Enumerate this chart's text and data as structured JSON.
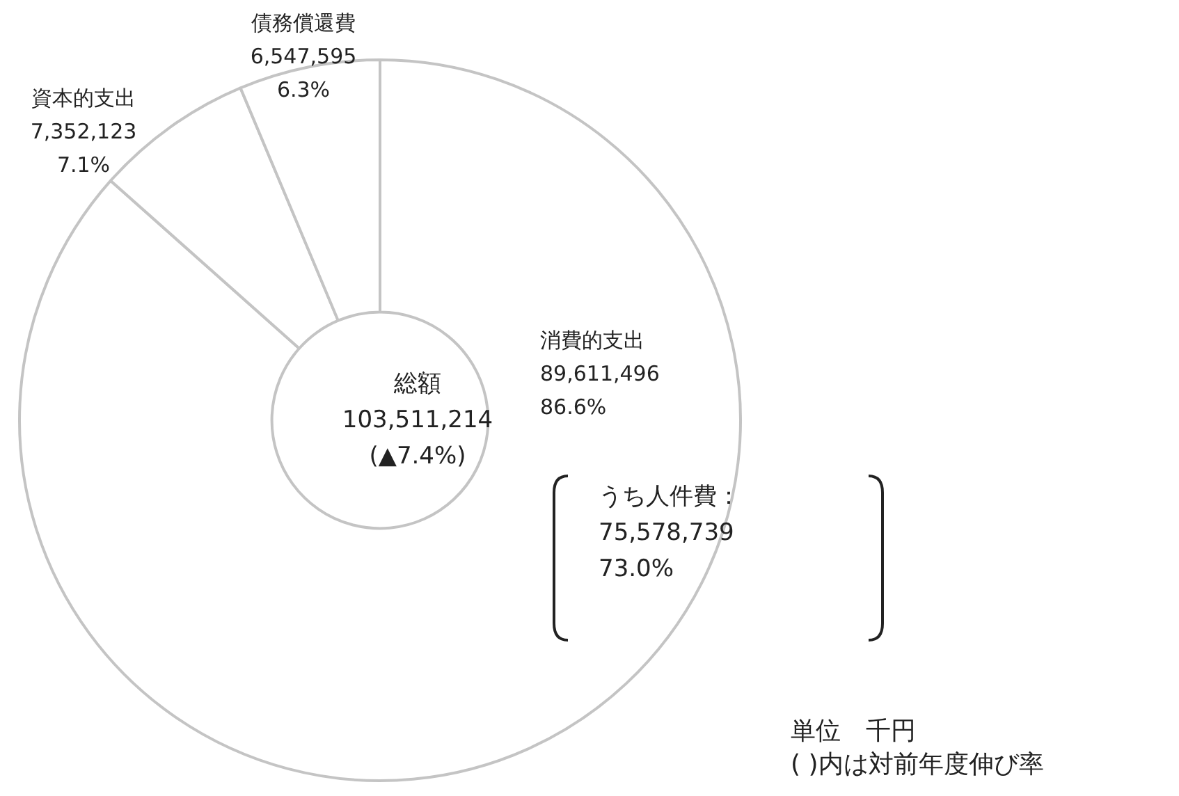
{
  "chart_data": {
    "type": "donut",
    "categories": [
      "消費的支出",
      "資本的支出",
      "債務償還費"
    ],
    "values": [
      89611496,
      7352123,
      6547595
    ],
    "colors": [
      "#ffffff",
      "#ffffff",
      "#ffffff"
    ],
    "value_labels": [
      "89,611,496\n86.6%",
      "7,352,123\n7.1%",
      "6,547,595\n6.3%"
    ],
    "annotations": [
      "総額\n103,511,214\n(▲7.4%)",
      "うち人件費：\n75,578,739\n73.0%",
      "単位　千円\n( )内は対前年度伸び率"
    ]
  }
}
